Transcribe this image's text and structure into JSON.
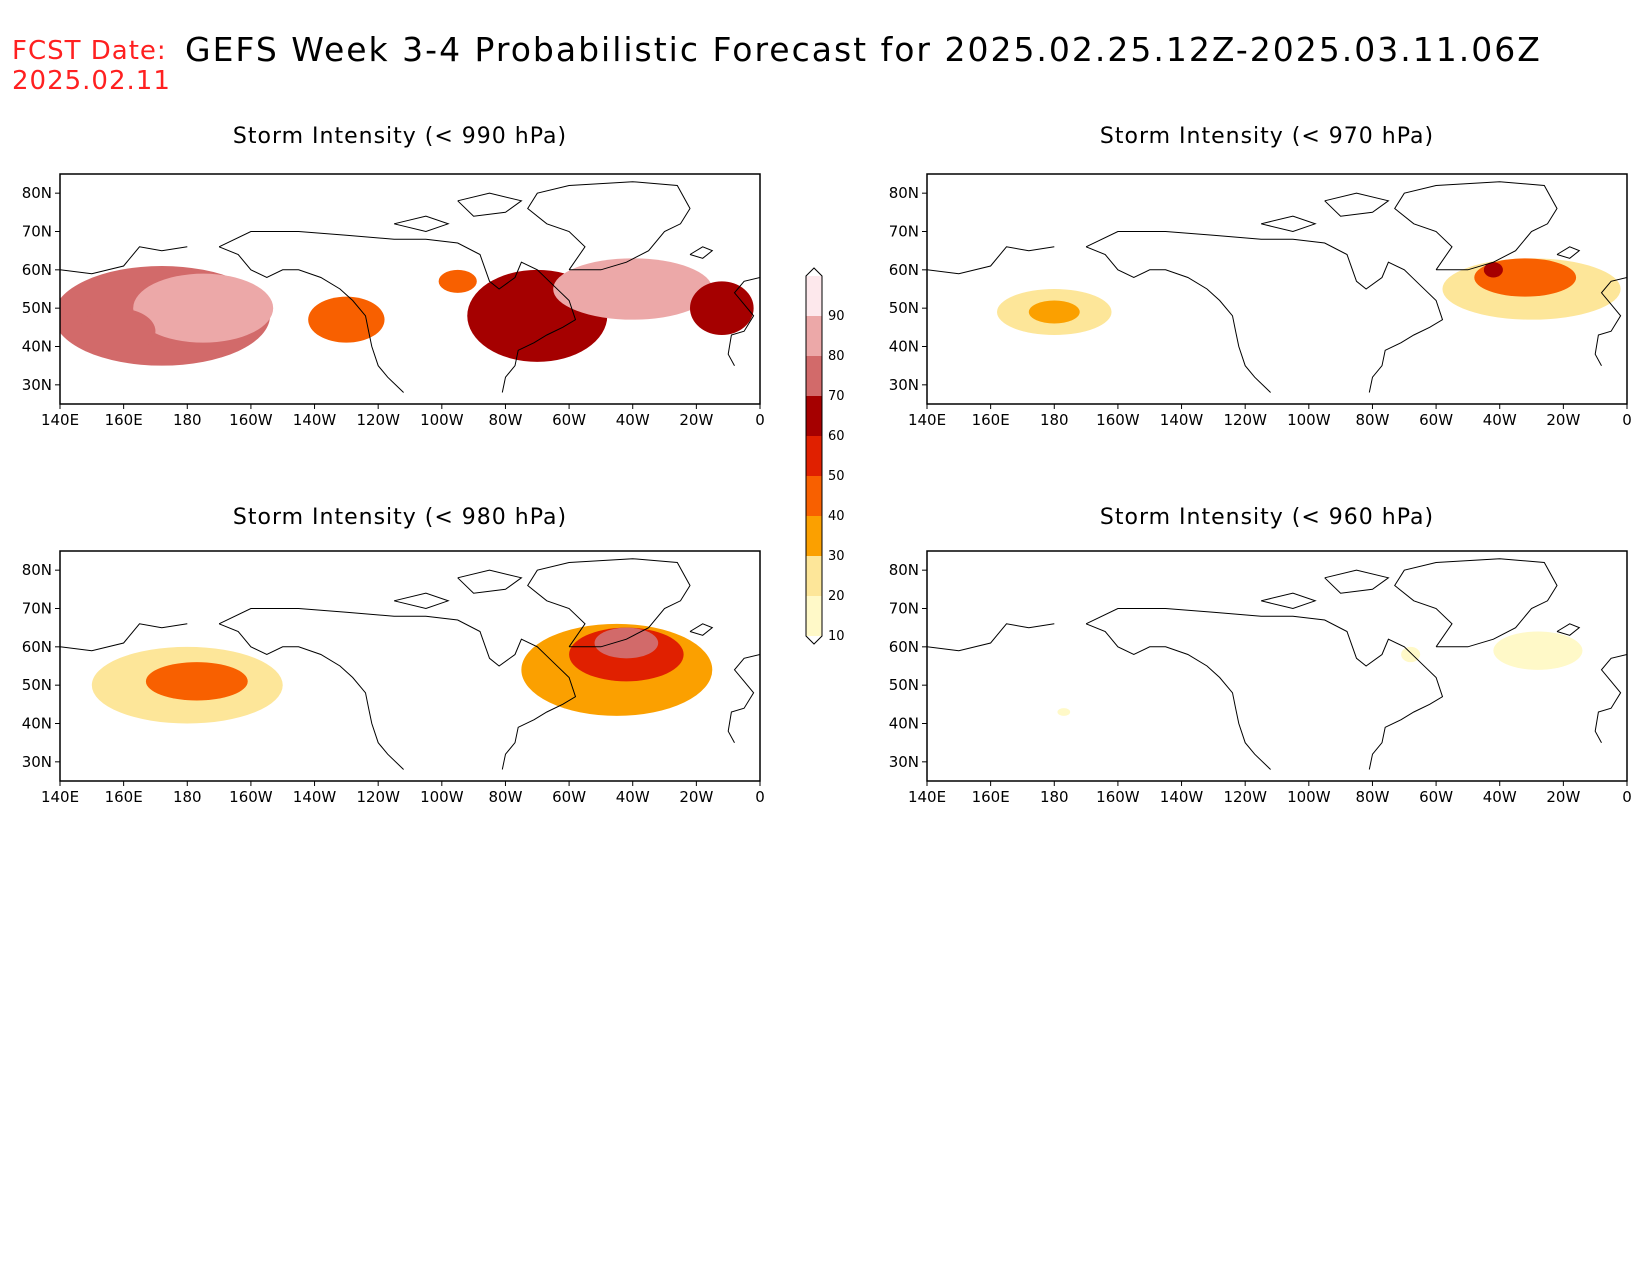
{
  "header": {
    "fcst_label": "FCST Date:",
    "fcst_date": "2025.02.11",
    "title": "GEFS Week 3-4 Probabilistic Forecast for 2025.02.25.12Z-2025.03.11.06Z"
  },
  "axes": {
    "x_ticks": [
      "140E",
      "160E",
      "180",
      "160W",
      "140W",
      "120W",
      "100W",
      "80W",
      "60W",
      "40W",
      "20W",
      "0"
    ],
    "y_ticks": [
      "80N",
      "70N",
      "60N",
      "50N",
      "40N",
      "30N"
    ],
    "lon_range": [
      140,
      360
    ],
    "lat_range": [
      25,
      85
    ]
  },
  "colorbar": {
    "levels": [
      "10",
      "20",
      "30",
      "40",
      "50",
      "60",
      "70",
      "80",
      "90"
    ],
    "colors": [
      "#fff9c8",
      "#fde699",
      "#fba000",
      "#f86000",
      "#e02000",
      "#a50000",
      "#d26a6a",
      "#eca8a8",
      "#fde8ec"
    ]
  },
  "panels": [
    {
      "id": "p990",
      "title": "Storm Intensity (< 990 hPa)",
      "blobs": [
        {
          "lon": 172,
          "lat": 48,
          "rx": 34,
          "ry": 13,
          "p": 70
        },
        {
          "lon": 185,
          "lat": 50,
          "rx": 22,
          "ry": 9,
          "p": 85
        },
        {
          "lon": 158,
          "lat": 44,
          "rx": 12,
          "ry": 6,
          "p": 75
        },
        {
          "lon": 230,
          "lat": 47,
          "rx": 12,
          "ry": 6,
          "p": 45
        },
        {
          "lon": 290,
          "lat": 48,
          "rx": 22,
          "ry": 12,
          "p": 65
        },
        {
          "lon": 320,
          "lat": 55,
          "rx": 25,
          "ry": 8,
          "p": 85
        },
        {
          "lon": 348,
          "lat": 50,
          "rx": 10,
          "ry": 7,
          "p": 65
        },
        {
          "lon": 265,
          "lat": 57,
          "rx": 6,
          "ry": 3,
          "p": 40
        }
      ]
    },
    {
      "id": "p970",
      "title": "Storm Intensity (< 970 hPa)",
      "blobs": [
        {
          "lon": 180,
          "lat": 49,
          "rx": 18,
          "ry": 6,
          "p": 25
        },
        {
          "lon": 180,
          "lat": 49,
          "rx": 8,
          "ry": 3,
          "p": 35
        },
        {
          "lon": 330,
          "lat": 55,
          "rx": 28,
          "ry": 8,
          "p": 25
        },
        {
          "lon": 328,
          "lat": 58,
          "rx": 16,
          "ry": 5,
          "p": 42
        },
        {
          "lon": 318,
          "lat": 60,
          "rx": 3,
          "ry": 2,
          "p": 65
        }
      ]
    },
    {
      "id": "p980",
      "title": "Storm Intensity (< 980 hPa)",
      "blobs": [
        {
          "lon": 180,
          "lat": 50,
          "rx": 30,
          "ry": 10,
          "p": 28
        },
        {
          "lon": 183,
          "lat": 51,
          "rx": 16,
          "ry": 5,
          "p": 48
        },
        {
          "lon": 315,
          "lat": 54,
          "rx": 30,
          "ry": 12,
          "p": 30
        },
        {
          "lon": 318,
          "lat": 58,
          "rx": 18,
          "ry": 7,
          "p": 58
        },
        {
          "lon": 318,
          "lat": 61,
          "rx": 10,
          "ry": 4,
          "p": 75
        }
      ]
    },
    {
      "id": "p960",
      "title": "Storm Intensity (< 960 hPa)",
      "blobs": [
        {
          "lon": 332,
          "lat": 59,
          "rx": 14,
          "ry": 5,
          "p": 15
        },
        {
          "lon": 292,
          "lat": 58,
          "rx": 3,
          "ry": 2,
          "p": 15
        },
        {
          "lon": 183,
          "lat": 43,
          "rx": 2,
          "ry": 1,
          "p": 15
        }
      ]
    }
  ]
}
